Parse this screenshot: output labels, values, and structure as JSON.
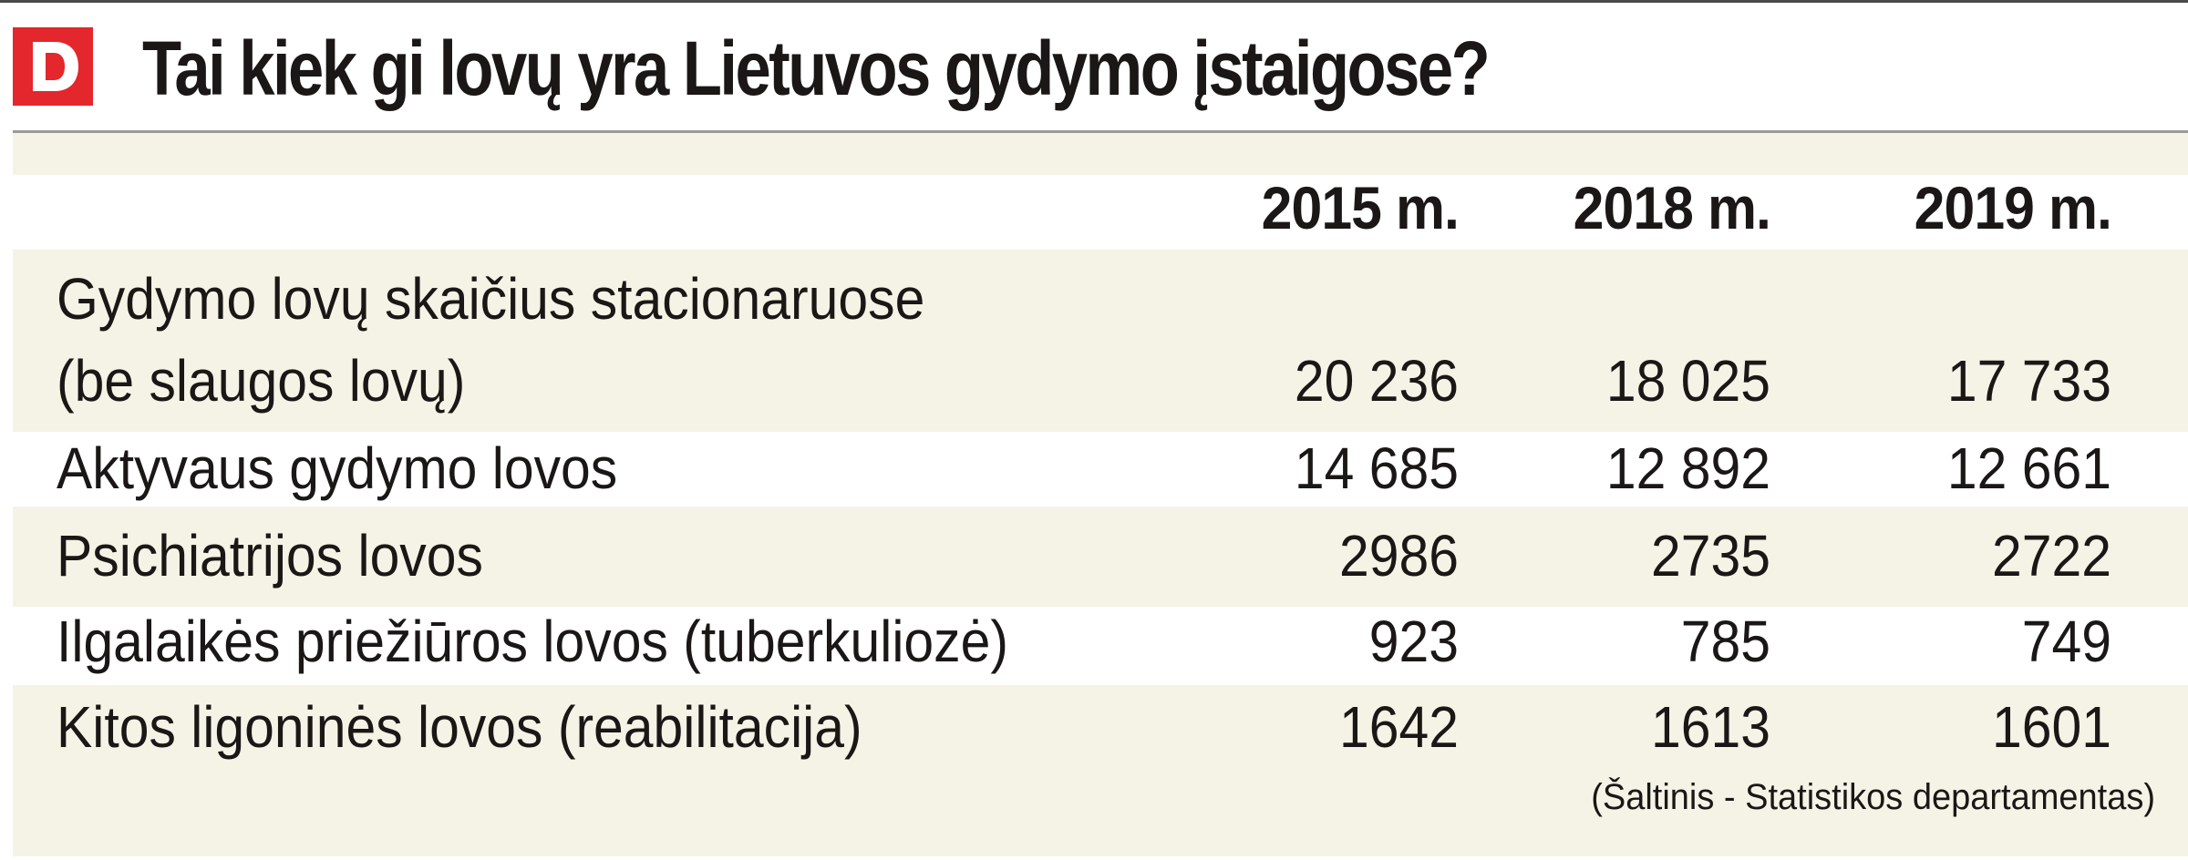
{
  "brand": {
    "logo_letter": "D",
    "logo_color": "#e4262d"
  },
  "title": "Tai kiek gi lovų yra Lietuvos gydymo įstaigose?",
  "colors": {
    "band_shade": "#f4f3e5",
    "text": "#1a1716"
  },
  "table": {
    "columns": [
      "2015 m.",
      "2018 m.",
      "2019 m."
    ],
    "rows": [
      {
        "label_line1": "Gydymo lovų skaičius stacionaruose",
        "label_line2": "(be slaugos lovų)",
        "values": [
          "20 236",
          "18 025",
          "17 733"
        ]
      },
      {
        "label": "Aktyvaus gydymo lovos",
        "values": [
          "14 685",
          "12 892",
          "12 661"
        ]
      },
      {
        "label": "Psichiatrijos lovos",
        "values": [
          "2986",
          "2735",
          "2722"
        ]
      },
      {
        "label": "Ilgalaikės priežiūros lovos (tuberkuliozė)",
        "values": [
          "923",
          "785",
          "749"
        ]
      },
      {
        "label": "Kitos ligoninės lovos (reabilitacija)",
        "values": [
          "1642",
          "1613",
          "1601"
        ]
      }
    ]
  },
  "source": "(Šaltinis - Statistikos departamentas)"
}
